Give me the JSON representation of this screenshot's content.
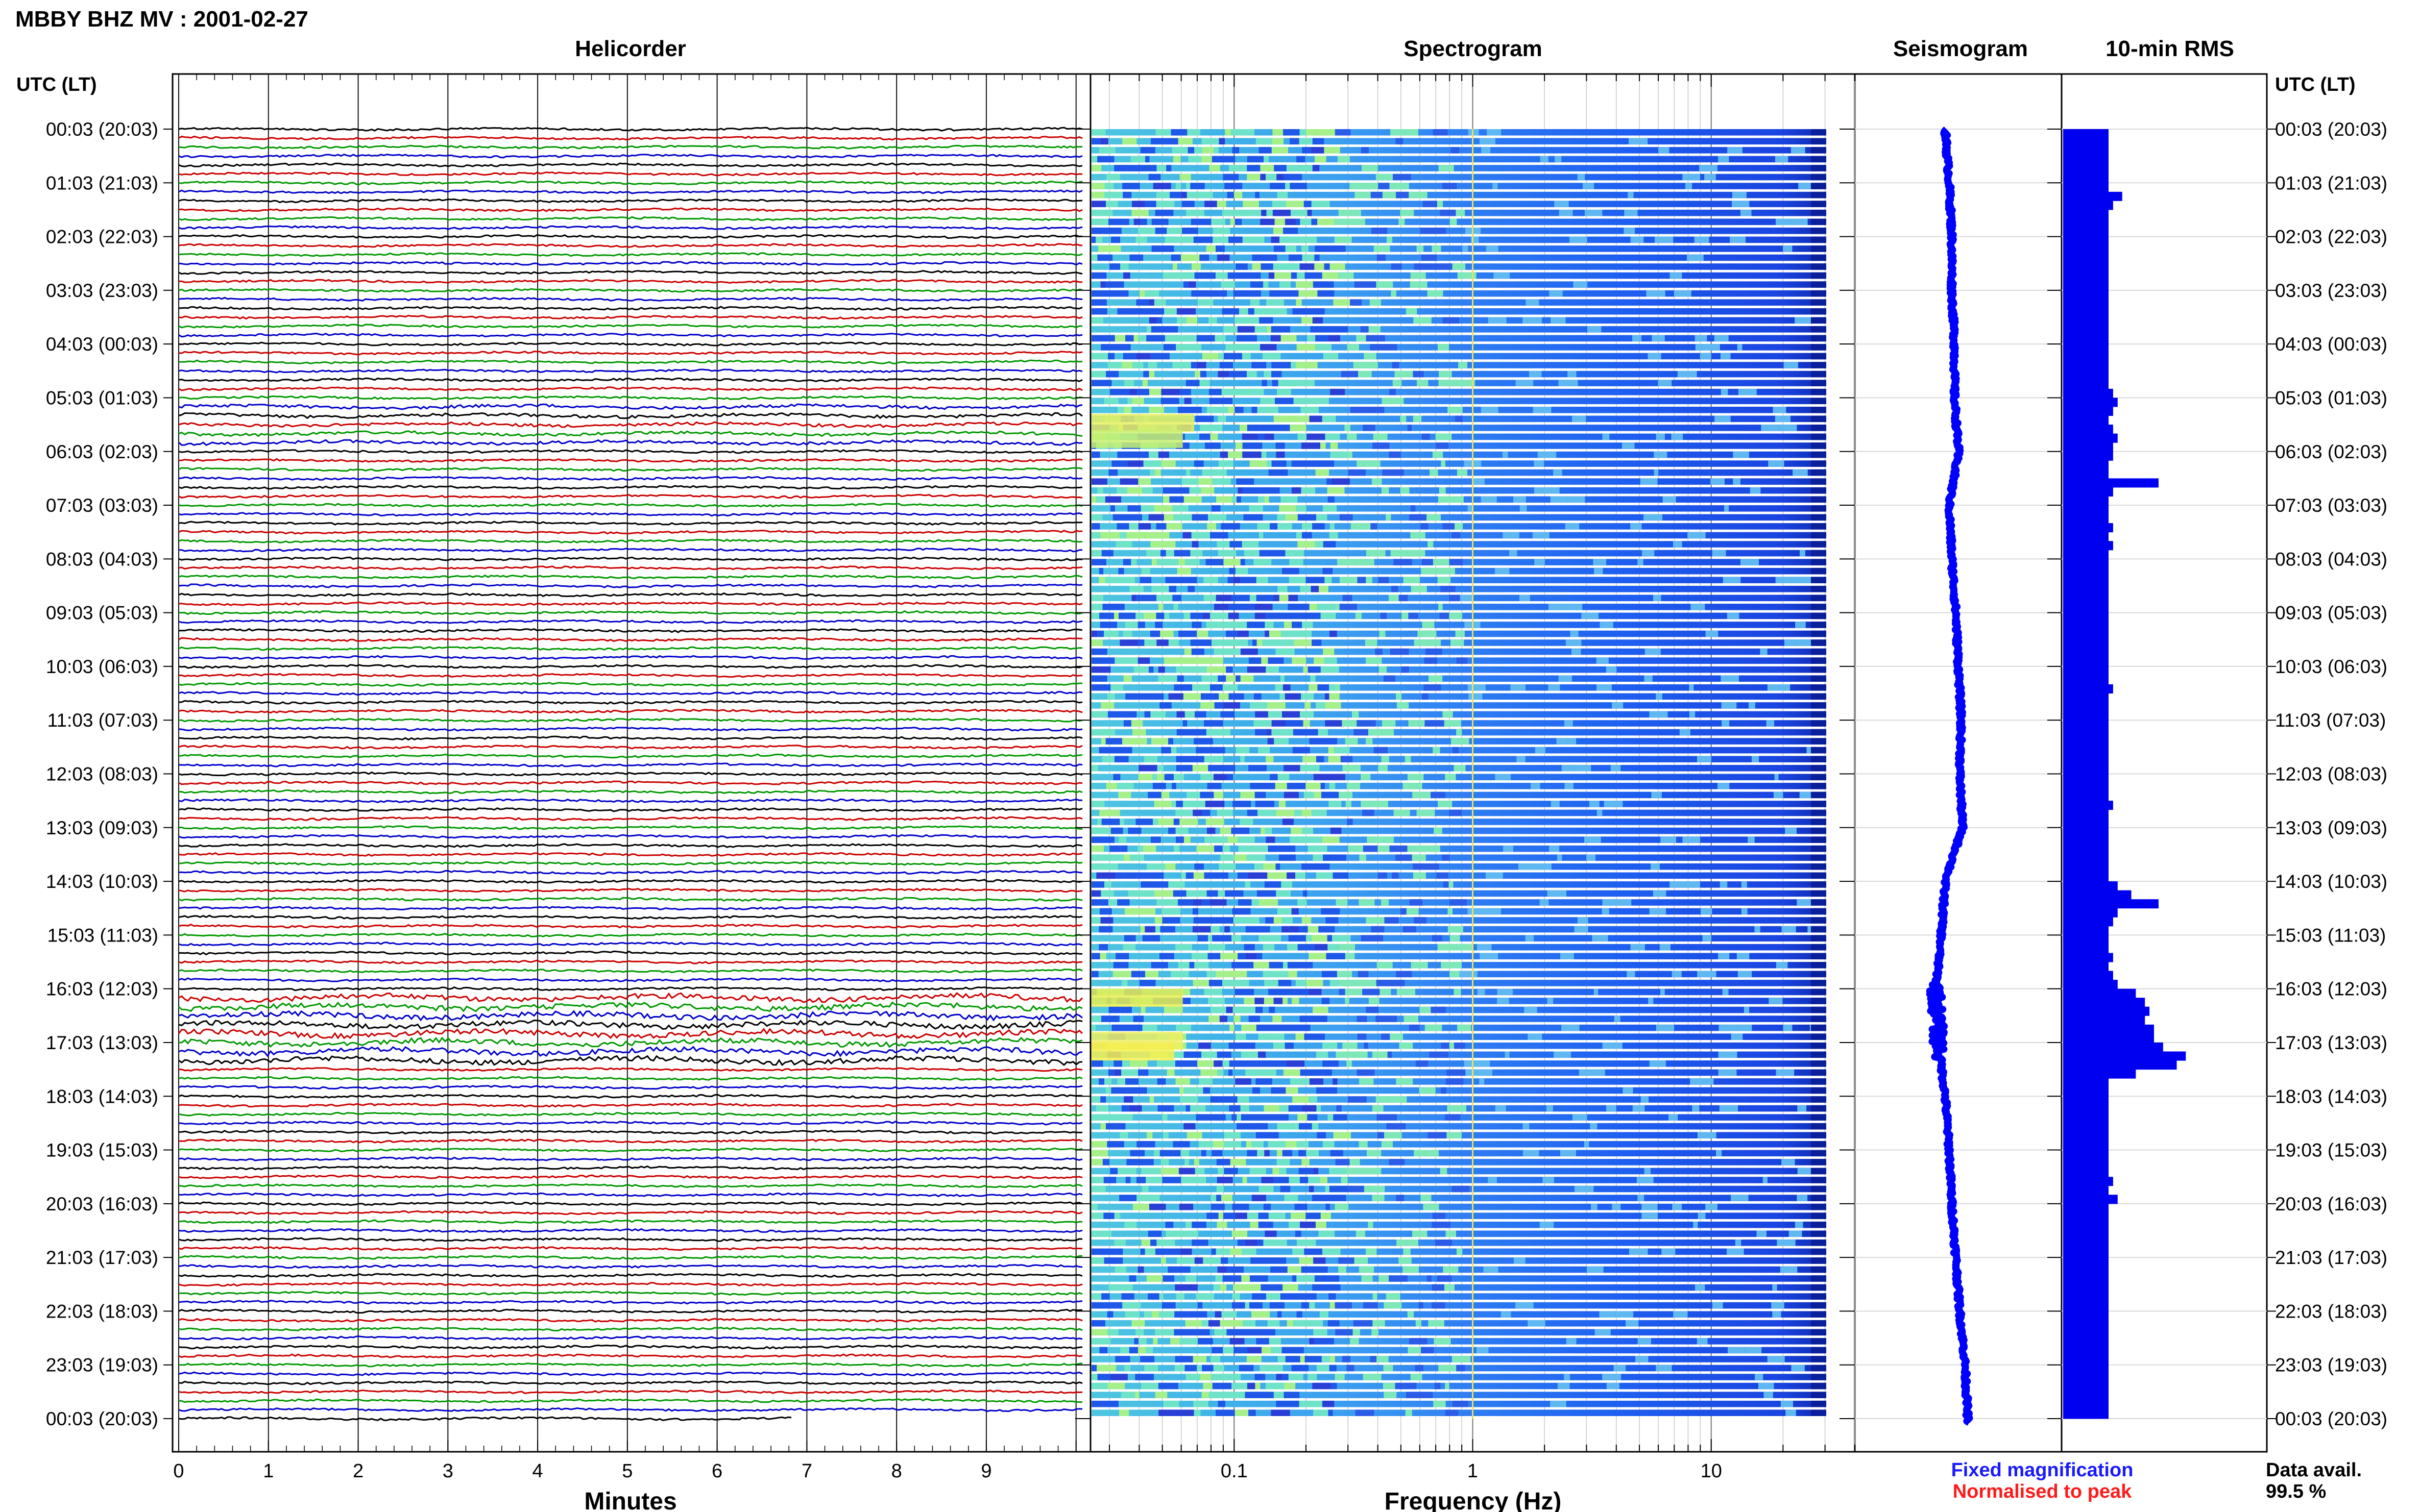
{
  "chart_data": {
    "type": "line",
    "title": "MBBY BHZ MV : 2001-02-27",
    "panels": {
      "helicorder": {
        "title": "Helicorder",
        "xlabel": "Minutes",
        "xlim": [
          0,
          10
        ],
        "x_ticks": [
          "0",
          "1",
          "2",
          "3",
          "4",
          "5",
          "6",
          "7",
          "8",
          "9"
        ]
      },
      "spectrogram": {
        "title": "Spectrogram",
        "xlabel": "Frequency (Hz)",
        "xscale": "log",
        "xlim": [
          0.025,
          40
        ],
        "x_ticks": [
          "0.1",
          "1",
          "10"
        ]
      },
      "seismogram": {
        "title": "Seismogram"
      },
      "rms": {
        "title": "10-min RMS"
      }
    },
    "y_axis_label": "UTC (LT)",
    "y_ticks": [
      "00:03 (20:03)",
      "01:03 (21:03)",
      "02:03 (22:03)",
      "03:03 (23:03)",
      "04:03 (00:03)",
      "05:03 (01:03)",
      "06:03 (02:03)",
      "07:03 (03:03)",
      "08:03 (04:03)",
      "09:03 (05:03)",
      "10:03 (06:03)",
      "11:03 (07:03)",
      "12:03 (08:03)",
      "13:03 (09:03)",
      "14:03 (10:03)",
      "15:03 (11:03)",
      "16:03 (12:03)",
      "17:03 (13:03)",
      "18:03 (14:03)",
      "19:03 (15:03)",
      "20:03 (16:03)",
      "21:03 (17:03)",
      "22:03 (18:03)",
      "23:03 (19:03)",
      "00:03 (20:03)"
    ],
    "rms_series": [
      {
        "hour": 0,
        "values": [
          10,
          10,
          10,
          10,
          10,
          10
        ]
      },
      {
        "hour": 1,
        "values": [
          10,
          13,
          11,
          10,
          10,
          10
        ]
      },
      {
        "hour": 2,
        "values": [
          10,
          10,
          10,
          10,
          10,
          10
        ]
      },
      {
        "hour": 3,
        "values": [
          10,
          10,
          10,
          10,
          10,
          10
        ]
      },
      {
        "hour": 4,
        "values": [
          10,
          10,
          10,
          10,
          10,
          11
        ]
      },
      {
        "hour": 5,
        "values": [
          12,
          11,
          10,
          11,
          12,
          11
        ]
      },
      {
        "hour": 6,
        "values": [
          11,
          10,
          10,
          21,
          11,
          10
        ]
      },
      {
        "hour": 7,
        "values": [
          10,
          10,
          11,
          10,
          11,
          10
        ]
      },
      {
        "hour": 8,
        "values": [
          10,
          10,
          10,
          10,
          10,
          10
        ]
      },
      {
        "hour": 9,
        "values": [
          10,
          10,
          10,
          10,
          10,
          10
        ]
      },
      {
        "hour": 10,
        "values": [
          10,
          10,
          11,
          10,
          10,
          10
        ]
      },
      {
        "hour": 11,
        "values": [
          10,
          10,
          10,
          10,
          10,
          10
        ]
      },
      {
        "hour": 12,
        "values": [
          10,
          10,
          10,
          11,
          10,
          10
        ]
      },
      {
        "hour": 13,
        "values": [
          10,
          10,
          10,
          10,
          10,
          10
        ]
      },
      {
        "hour": 14,
        "values": [
          12,
          15,
          21,
          12,
          11,
          10
        ]
      },
      {
        "hour": 15,
        "values": [
          10,
          10,
          11,
          10,
          11,
          12
        ]
      },
      {
        "hour": 16,
        "values": [
          16,
          18,
          19,
          18,
          20,
          20
        ]
      },
      {
        "hour": 17,
        "values": [
          22,
          27,
          25,
          16,
          10,
          10
        ]
      },
      {
        "hour": 18,
        "values": [
          10,
          10,
          10,
          10,
          10,
          10
        ]
      },
      {
        "hour": 19,
        "values": [
          10,
          10,
          10,
          11,
          10,
          12
        ]
      },
      {
        "hour": 20,
        "values": [
          10,
          10,
          10,
          10,
          10,
          10
        ]
      },
      {
        "hour": 21,
        "values": [
          10,
          10,
          10,
          10,
          10,
          10
        ]
      },
      {
        "hour": 22,
        "values": [
          10,
          10,
          10,
          10,
          10,
          10
        ]
      },
      {
        "hour": 23,
        "values": [
          10,
          10,
          10,
          10,
          10,
          10
        ]
      }
    ],
    "seismogram_offsets": [
      0.45,
      0.48,
      0.5,
      0.5,
      0.52,
      0.52,
      0.55,
      0.48,
      0.5,
      0.53,
      0.55,
      0.57,
      0.56,
      0.58,
      0.45,
      0.42,
      0.38,
      0.4,
      0.45,
      0.48,
      0.5,
      0.53,
      0.56,
      0.6,
      0.62
    ],
    "line_colors": [
      "#000000",
      "#cc0000",
      "#009900",
      "#0000cc"
    ],
    "legend": {
      "fixed": "Fixed magnification",
      "normalised": "Normalised to peak",
      "fixed_color": "#1a1aff",
      "normalised_color": "#ff1a1a"
    },
    "data_availability": {
      "label": "Data avail.",
      "value": "99.5 %"
    }
  }
}
